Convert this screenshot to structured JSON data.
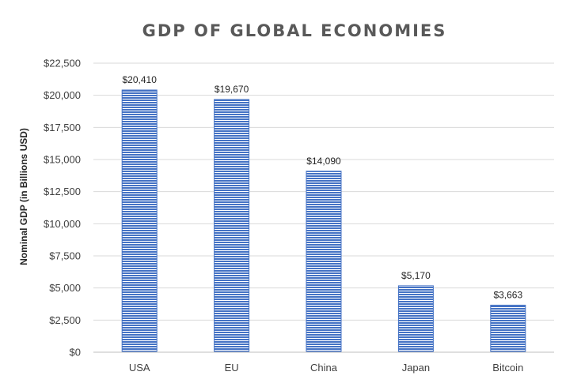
{
  "chart_data": {
    "type": "bar",
    "title": "GDP OF GLOBAL ECONOMIES",
    "xlabel": "",
    "ylabel": "Nominal GDP (in Billions USD)",
    "categories": [
      "USA",
      "EU",
      "China",
      "Japan",
      "Bitcoin"
    ],
    "values": [
      20410,
      19670,
      14090,
      5170,
      3663
    ],
    "data_labels": [
      "$20,410",
      "$19,670",
      "$14,090",
      "$5,170",
      "$3,663"
    ],
    "ylim": [
      0,
      22500
    ],
    "yticks": [
      0,
      2500,
      5000,
      7500,
      10000,
      12500,
      15000,
      17500,
      20000,
      22500
    ],
    "ytick_labels": [
      "$0",
      "$2,500",
      "$5,000",
      "$7,500",
      "$10,000",
      "$12,500",
      "$15,000",
      "$17,500",
      "$20,000",
      "$22,500"
    ],
    "grid": true,
    "legend": "none",
    "colors": {
      "bar": "#4472c4",
      "bar_stripe": "#ffffff"
    }
  }
}
